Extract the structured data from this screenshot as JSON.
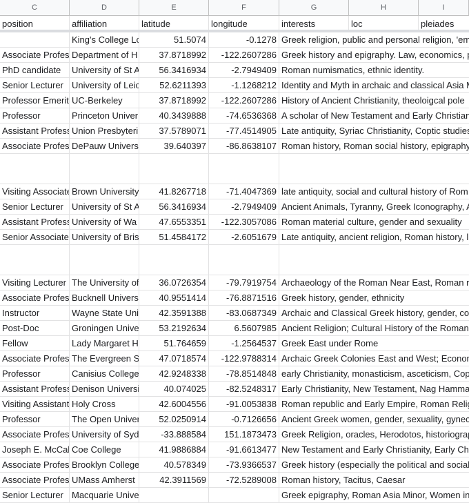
{
  "column_letters": [
    "C",
    "D",
    "E",
    "F",
    "G",
    "H",
    "I"
  ],
  "headers": [
    "position",
    "affiliation",
    "latitude",
    "longitude",
    "interests",
    "loc",
    "pleiades"
  ],
  "rows": [
    {
      "position": "",
      "affiliation": "King's College Lo",
      "latitude": "51.5074",
      "longitude": "-0.1278",
      "interests": "Greek religion, public and personal religion, 'em",
      "h": 22
    },
    {
      "position": "Associate Profes",
      "affiliation": "Department of H",
      "latitude": "37.8718992",
      "longitude": "-122.2607286",
      "interests": "Greek history and epigraphy. Law, economics, p",
      "h": 22
    },
    {
      "position": "PhD candidate",
      "affiliation": "University of St A",
      "latitude": "56.3416934",
      "longitude": "-2.7949409",
      "interests": "Roman numismatics, ethnic identity.",
      "h": 22
    },
    {
      "position": "Senior Lecturer",
      "affiliation": "University of Leic",
      "latitude": "52.6211393",
      "longitude": "-1.1268212",
      "interests": "Identity and Myth in archaic and classical Asia M",
      "h": 22
    },
    {
      "position": "Professor Emerit",
      "affiliation": "UC-Berkeley",
      "latitude": "37.8718992",
      "longitude": "-122.2607286",
      "interests": "History of Ancient Christianity, theoloigcal pole",
      "h": 22
    },
    {
      "position": "Professor",
      "affiliation": "Princeton Univer",
      "latitude": "40.3439888",
      "longitude": "-74.6536368",
      "interests": "A scholar of New Testament and Early Christian",
      "h": 22
    },
    {
      "position": "Assistant Profess",
      "affiliation": "Union Presbyteri",
      "latitude": "37.5789071",
      "longitude": "-77.4514905",
      "interests": "Late antiquity, Syriac Christianity, Coptic studies",
      "h": 22
    },
    {
      "position": "Associate Profes",
      "affiliation": "DePauw Universi",
      "latitude": "39.640397",
      "longitude": "-86.8638107",
      "interests": "Roman history, Roman social history, epigraphy",
      "h": 22
    },
    {
      "position": "",
      "affiliation": "",
      "latitude": "",
      "longitude": "",
      "interests": "",
      "h": 44
    },
    {
      "position": "Visiting Associate",
      "affiliation": "Brown University",
      "latitude": "41.8267718",
      "longitude": "-71.4047369",
      "interests": "late antiquity, social and cultural history of Rom",
      "h": 22
    },
    {
      "position": "Senior Lecturer",
      "affiliation": "University of St A",
      "latitude": "56.3416934",
      "longitude": "-2.7949409",
      "interests": "Ancient Animals, Tyranny, Greek Iconography, A",
      "h": 22
    },
    {
      "position": "Assistant Profess",
      "affiliation": "University of Wa",
      "latitude": "47.6553351",
      "longitude": "-122.3057086",
      "interests": "Roman material culture, gender and sexuality",
      "h": 22
    },
    {
      "position": "Senior Associate",
      "affiliation": "University of Bris",
      "latitude": "51.4584172",
      "longitude": "-2.6051679",
      "interests": "Late antiquity, ancient religion, Roman history, l",
      "h": 22
    },
    {
      "position": "",
      "affiliation": "",
      "latitude": "",
      "longitude": "",
      "interests": "",
      "h": 44
    },
    {
      "position": "Visiting Lecturer",
      "affiliation": "The University of",
      "latitude": "36.0726354",
      "longitude": "-79.7919754",
      "interests": "Archaeology of the Roman Near East, Roman re",
      "h": 22
    },
    {
      "position": "Associate Profes",
      "affiliation": "Bucknell Univers",
      "latitude": "40.9551414",
      "longitude": "-76.8871516",
      "interests": "Greek history, gender, ethnicity",
      "h": 22
    },
    {
      "position": "Instructor",
      "affiliation": "Wayne State Uni",
      "latitude": "42.3591388",
      "longitude": "-83.0687349",
      "interests": "Archaic and Classical Greek history, gender, com",
      "h": 22
    },
    {
      "position": "Post-Doc",
      "affiliation": "Groningen Unive",
      "latitude": "53.2192634",
      "longitude": "6.5607985",
      "interests": "Ancient Religion; Cultural History of the Roman",
      "h": 22
    },
    {
      "position": "Fellow",
      "affiliation": "Lady Margaret H",
      "latitude": "51.764659",
      "longitude": "-1.2564537",
      "interests": "Greek East under Rome",
      "h": 22
    },
    {
      "position": "Associate Profes",
      "affiliation": "The Evergreen St",
      "latitude": "47.0718574",
      "longitude": "-122.9788314",
      "interests": "Archaic Greek Colonies East and West; Econom",
      "h": 22
    },
    {
      "position": "Professor",
      "affiliation": "Canisius College",
      "latitude": "42.9248338",
      "longitude": "-78.8514848",
      "interests": "early Christianity, monasticism, asceticism, Cop",
      "h": 22
    },
    {
      "position": "Assistant Profess",
      "affiliation": "Denison Universi",
      "latitude": "40.074025",
      "longitude": "-82.5248317",
      "interests": "Early Christianity, New Testament, Nag Hamma",
      "h": 22
    },
    {
      "position": "Visiting Assistant",
      "affiliation": "Holy Cross",
      "latitude": "42.6004556",
      "longitude": "-91.0053838",
      "interests": "Roman republic and Early Empire, Roman Religi",
      "h": 22
    },
    {
      "position": "Professor",
      "affiliation": "The Open Univer",
      "latitude": "52.0250914",
      "longitude": "-0.7126656",
      "interests": "Ancient Greek women, gender, sexuality, gynec",
      "h": 22
    },
    {
      "position": "Associate Profes",
      "affiliation": "University of Syd",
      "latitude": "-33.888584",
      "longitude": "151.1873473",
      "interests": "Greek Religion, oracles, Herodotos, historiograp",
      "h": 22
    },
    {
      "position": "Joseph E. McCab",
      "affiliation": "Coe College",
      "latitude": "41.9886884",
      "longitude": "-91.6613477",
      "interests": "New Testament and Early Christianity, Early Chr",
      "h": 22
    },
    {
      "position": "Associate Profes",
      "affiliation": "Brooklyn College",
      "latitude": "40.578349",
      "longitude": "-73.9366537",
      "interests": "Greek history (especially the political and social",
      "h": 22
    },
    {
      "position": "Associate Profes",
      "affiliation": "UMass Amherst",
      "latitude": "42.3911569",
      "longitude": "-72.5289008",
      "interests": "Roman history, Tacitus, Caesar",
      "h": 22
    },
    {
      "position": "Senior Lecturer",
      "affiliation": "Macquarie Unive",
      "latitude": "",
      "longitude": "",
      "interests": "Greek epigraphy, Roman Asia Minor, Women in",
      "h": 22
    }
  ]
}
